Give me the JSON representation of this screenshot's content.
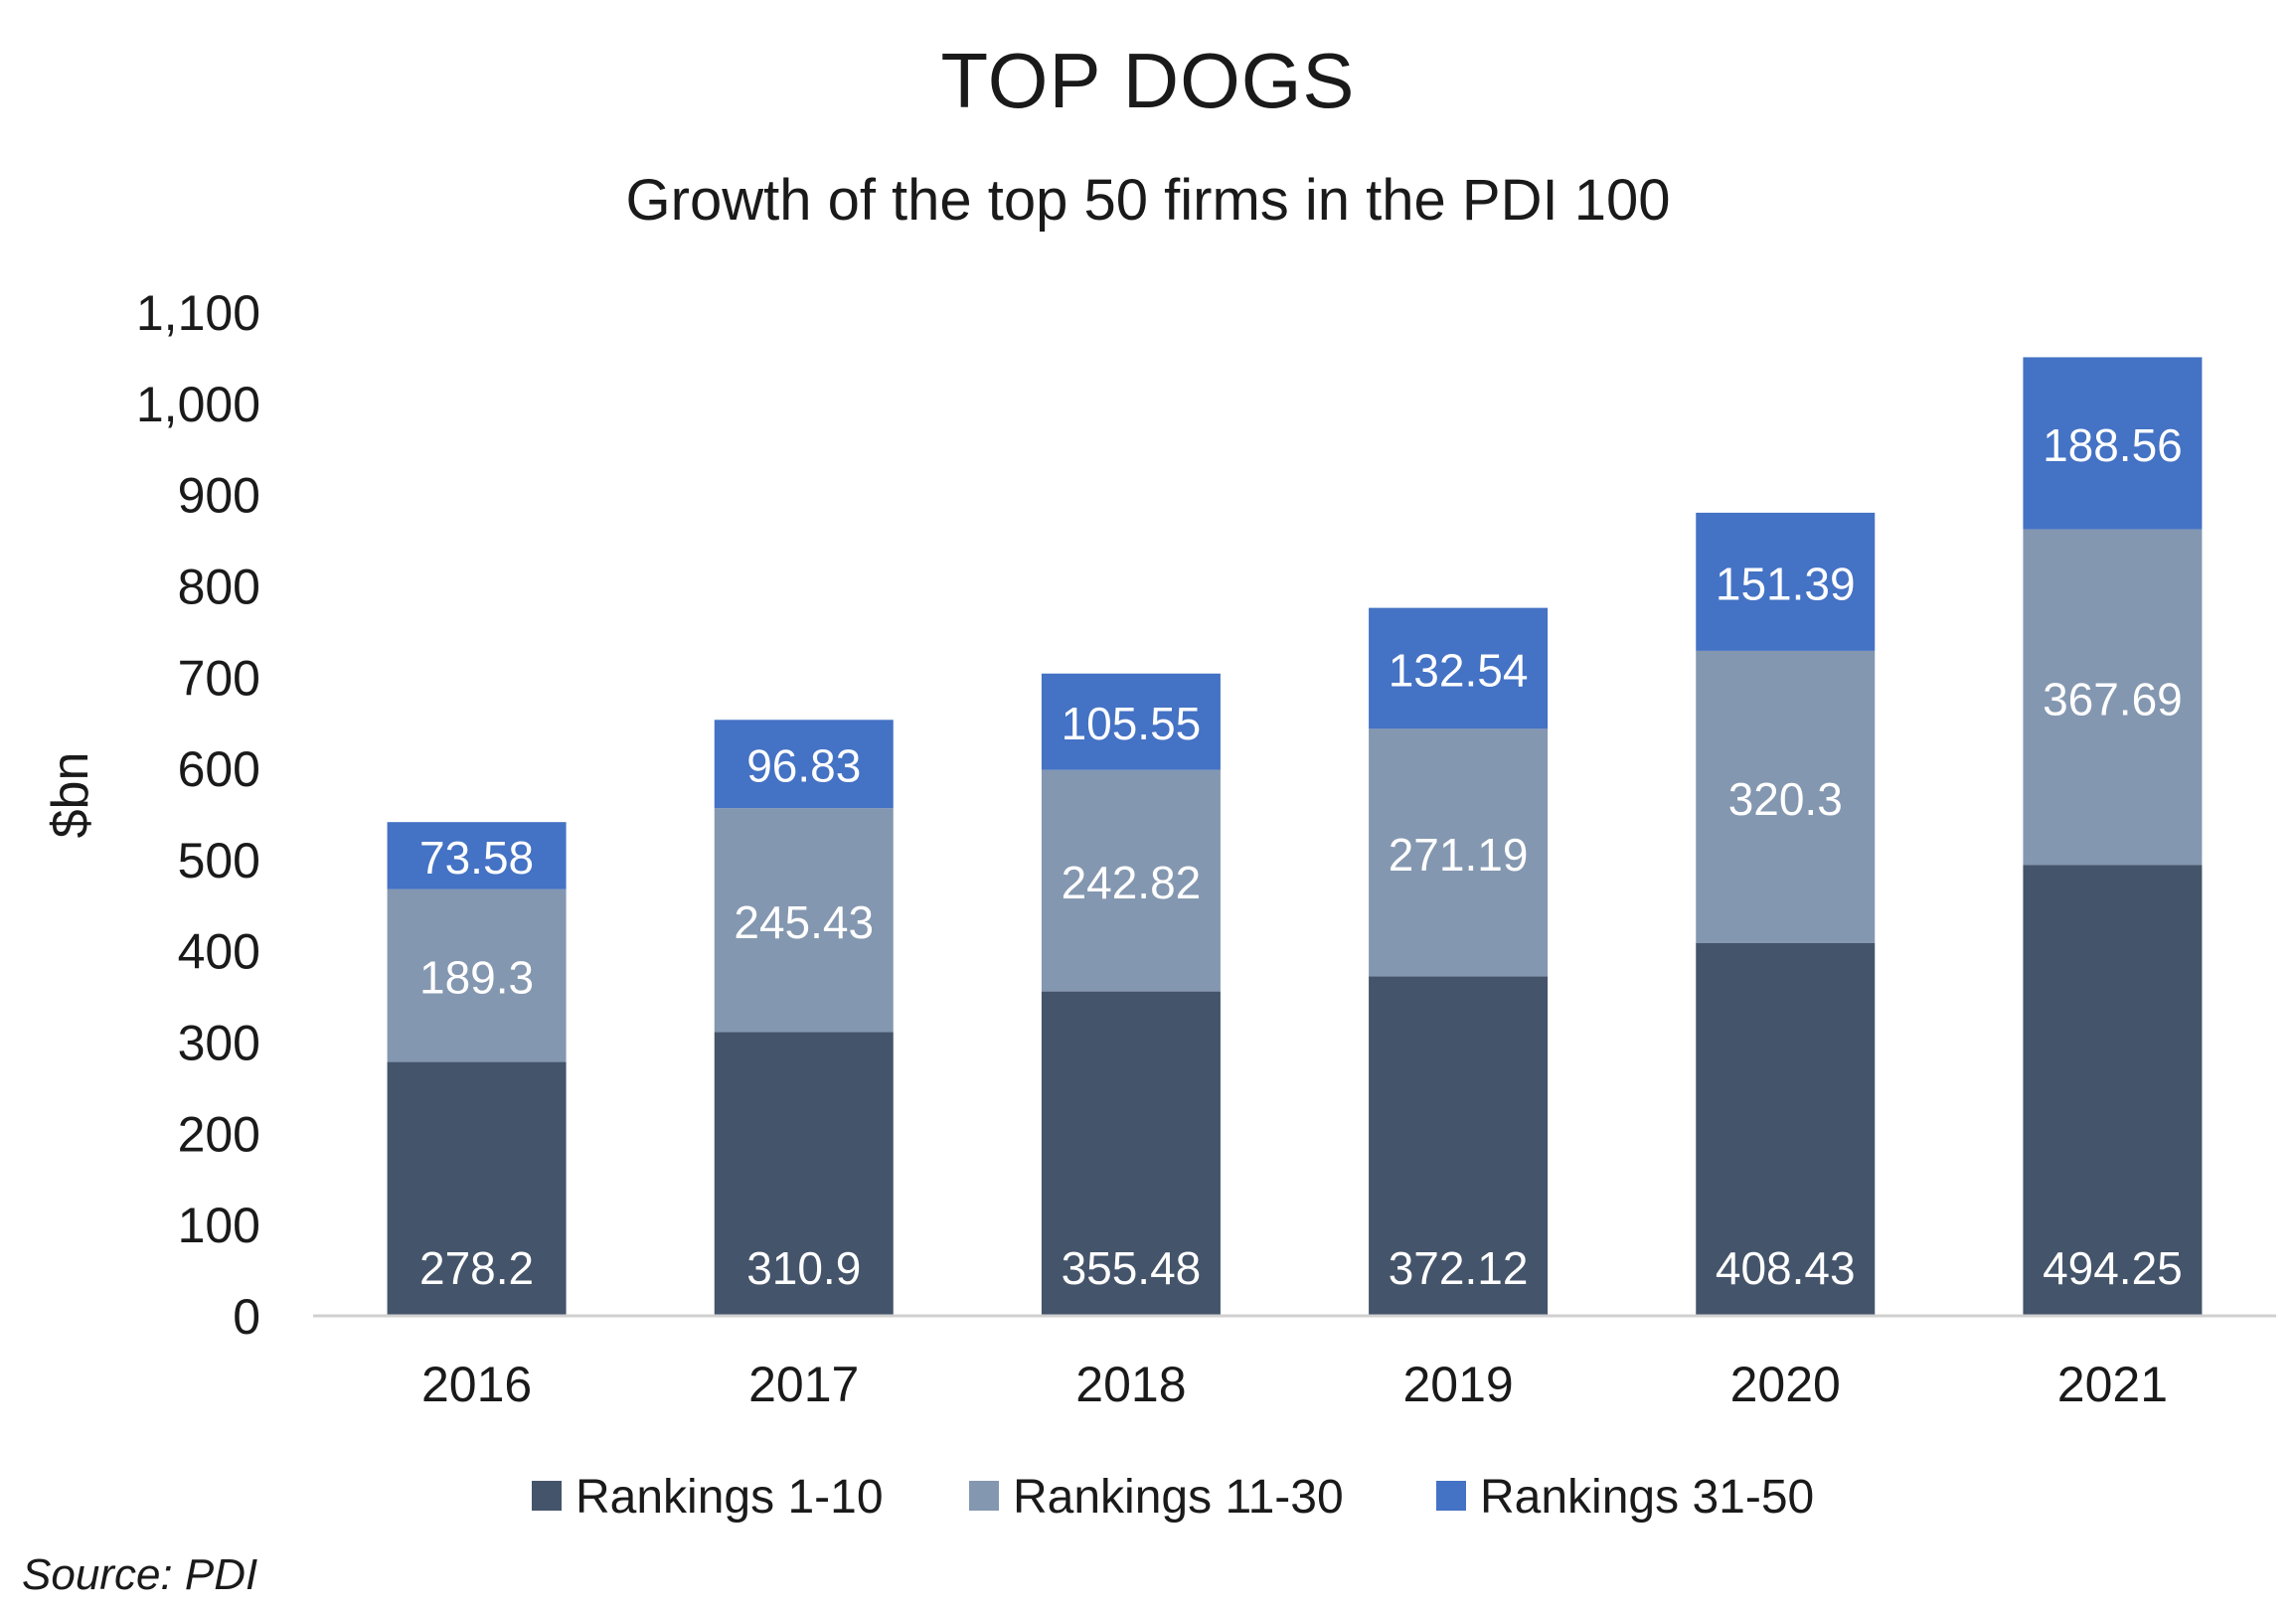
{
  "chart_data": {
    "type": "bar",
    "stacked": true,
    "title": "TOP DOGS",
    "subtitle": "Growth of the top 50 firms in the PDI 100",
    "ylabel": "$bn",
    "xlabel": "",
    "ylim": [
      0,
      1100
    ],
    "yticks": [
      0,
      100,
      200,
      300,
      400,
      500,
      600,
      700,
      800,
      900,
      1000,
      1100
    ],
    "ytick_labels": [
      "0",
      "100",
      "200",
      "300",
      "400",
      "500",
      "600",
      "700",
      "800",
      "900",
      "1,000",
      "1,100"
    ],
    "grid": false,
    "legend_position": "bottom",
    "categories": [
      "2016",
      "2017",
      "2018",
      "2019",
      "2020",
      "2021"
    ],
    "series": [
      {
        "name": "Rankings 1-10",
        "color": "#44546a",
        "values": [
          278.2,
          310.9,
          355.48,
          372.12,
          408.43,
          494.25
        ],
        "labels": [
          "278.2",
          "310.9",
          "355.48",
          "372.12",
          "408.43",
          "494.25"
        ]
      },
      {
        "name": "Rankings 11-30",
        "color": "#8497b0",
        "values": [
          189.3,
          245.43,
          242.82,
          271.19,
          320.3,
          367.69
        ],
        "labels": [
          "189.3",
          "245.43",
          "242.82",
          "271.19",
          "320.3",
          "367.69"
        ]
      },
      {
        "name": "Rankings 31-50",
        "color": "#4472c4",
        "values": [
          73.58,
          96.83,
          105.55,
          132.54,
          151.39,
          188.56
        ],
        "labels": [
          "73.58",
          "96.83",
          "105.55",
          "132.54",
          "151.39",
          "188.56"
        ]
      }
    ]
  },
  "source": "Source: PDI"
}
